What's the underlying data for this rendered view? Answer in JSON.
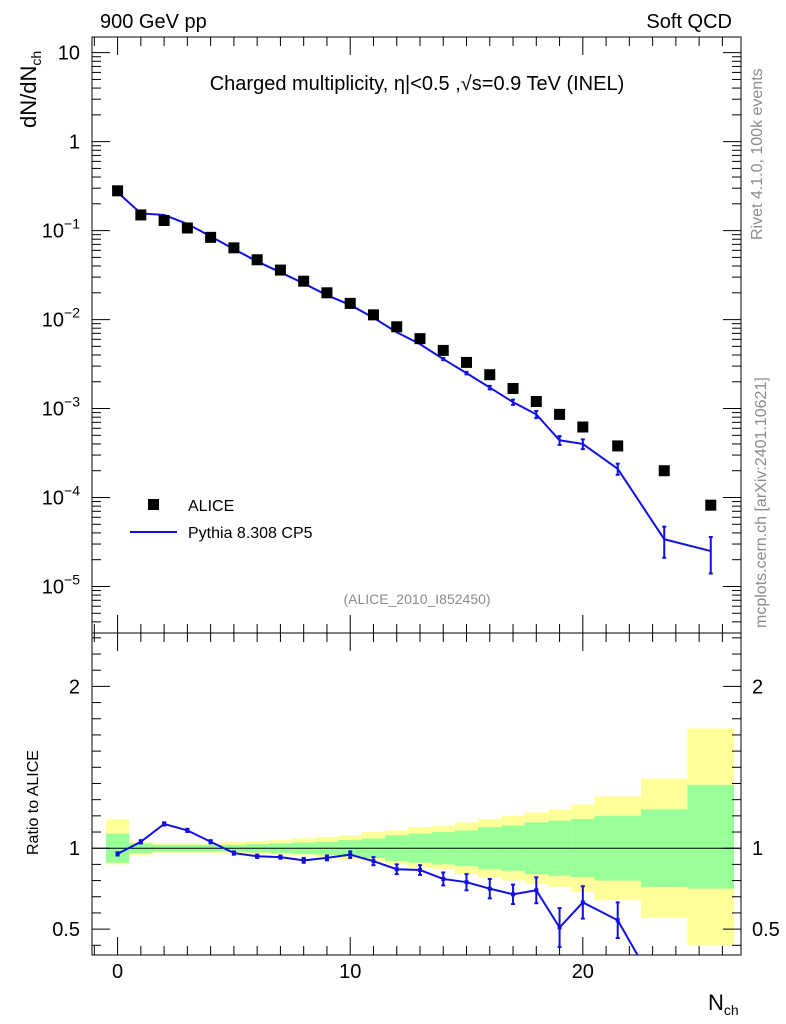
{
  "header": {
    "left": "900 GeV pp",
    "right": "Soft QCD",
    "title": "Charged multiplicity, η|<0.5 ,√s=0.9 TeV (INEL)",
    "analysis_tag": "(ALICE_2010_I852450)"
  },
  "side": {
    "rivet": "Rivet 4.1.0,  100k events",
    "mcplots": "mcplots.cern.ch [arXiv:2401.10621]"
  },
  "axes": {
    "ylabel_main": "dN/dN_ch",
    "ylabel_ratio": "Ratio to ALICE",
    "xlabel": "N_ch"
  },
  "legend": {
    "data_label": "ALICE",
    "mc_label": "Pythia 8.308 CP5"
  },
  "colors": {
    "mc": "#1010e0",
    "band_inner": "#99ff99",
    "band_outer": "#ffff99",
    "data": "#000000"
  },
  "chart_data": [
    {
      "type": "scatter",
      "name": "main",
      "yscale": "log",
      "xlim": [
        -1.1,
        26.8
      ],
      "ylim": [
        3e-06,
        15
      ],
      "x_major_ticks": [
        0,
        10,
        20
      ],
      "y_major_ticks": [
        1e-05,
        0.0001,
        0.001,
        0.01,
        0.1,
        1,
        10
      ],
      "y_tick_labels": [
        "10^-5",
        "10^-4",
        "10^-3",
        "10^-2",
        "10^-1",
        "1",
        "10"
      ],
      "series": [
        {
          "name": "ALICE",
          "style": "markers",
          "x": [
            0,
            1,
            2,
            3,
            4,
            5,
            6,
            7,
            8,
            9,
            10,
            11,
            12,
            13,
            14,
            15,
            16,
            17,
            18,
            19,
            20,
            21.5,
            23.5,
            25.5
          ],
          "y": [
            0.28,
            0.15,
            0.13,
            0.107,
            0.084,
            0.064,
            0.047,
            0.036,
            0.027,
            0.02,
            0.0152,
            0.0113,
            0.0083,
            0.0061,
            0.0045,
            0.0033,
            0.0024,
            0.00168,
            0.0012,
            0.00086,
            0.00062,
            0.00038,
            0.0002,
            8.2e-05
          ]
        },
        {
          "name": "Pythia 8.308 CP5",
          "style": "line",
          "x": [
            0,
            1,
            2,
            3,
            4,
            5,
            6,
            7,
            8,
            9,
            10,
            11,
            12,
            13,
            14,
            15,
            16,
            17,
            18,
            19,
            20,
            21.5,
            23.5,
            25.5
          ],
          "y": [
            0.27,
            0.156,
            0.15,
            0.119,
            0.086,
            0.062,
            0.045,
            0.034,
            0.0255,
            0.0188,
            0.0146,
            0.0105,
            0.0072,
            0.0053,
            0.0036,
            0.0025,
            0.00172,
            0.00118,
            0.00086,
            0.00044,
            0.0004,
            0.00021,
            3.4e-05,
            2.5e-05
          ],
          "y_err": [
            0.003,
            0.002,
            0.002,
            0.0015,
            0.0012,
            0.0009,
            0.0007,
            0.0005,
            0.0004,
            0.0003,
            0.00025,
            0.0002,
            0.00015,
            0.00012,
            0.0001,
            8e-05,
            8e-05,
            8e-05,
            8e-05,
            5e-05,
            5e-05,
            3e-05,
            1.3e-05,
            1.1e-05
          ]
        }
      ]
    },
    {
      "type": "line",
      "name": "ratio",
      "xlim": [
        -1.1,
        26.8
      ],
      "ylim": [
        0.34,
        2.33
      ],
      "y_major_ticks": [
        0.5,
        1,
        2
      ],
      "y_tick_labels": [
        "0.5",
        "1",
        "2"
      ],
      "reference_line": 1,
      "bands": {
        "edges": [
          -0.5,
          0.5,
          1.5,
          2.5,
          3.5,
          4.5,
          5.5,
          6.5,
          7.5,
          8.5,
          9.5,
          10.5,
          11.5,
          12.5,
          13.5,
          14.5,
          15.5,
          16.5,
          17.5,
          18.5,
          19.5,
          20.5,
          22.5,
          24.5,
          26.5
        ],
        "inner_lo": [
          0.91,
          0.97,
          0.98,
          0.98,
          0.98,
          0.98,
          0.975,
          0.97,
          0.965,
          0.96,
          0.95,
          0.94,
          0.92,
          0.91,
          0.9,
          0.89,
          0.87,
          0.86,
          0.84,
          0.83,
          0.82,
          0.8,
          0.76,
          0.75
        ],
        "inner_hi": [
          1.09,
          1.03,
          1.02,
          1.02,
          1.02,
          1.02,
          1.025,
          1.03,
          1.035,
          1.04,
          1.05,
          1.06,
          1.08,
          1.09,
          1.1,
          1.11,
          1.13,
          1.14,
          1.16,
          1.17,
          1.18,
          1.2,
          1.24,
          1.39
        ],
        "outer_lo": [
          0.9,
          0.96,
          0.97,
          0.97,
          0.97,
          0.97,
          0.965,
          0.96,
          0.955,
          0.94,
          0.93,
          0.92,
          0.9,
          0.88,
          0.87,
          0.84,
          0.82,
          0.8,
          0.78,
          0.76,
          0.73,
          0.68,
          0.57,
          0.4
        ],
        "outer_hi": [
          1.18,
          1.04,
          1.03,
          1.03,
          1.03,
          1.04,
          1.045,
          1.05,
          1.06,
          1.07,
          1.08,
          1.1,
          1.11,
          1.13,
          1.14,
          1.16,
          1.18,
          1.2,
          1.22,
          1.24,
          1.27,
          1.32,
          1.43,
          1.74
        ]
      },
      "series": [
        {
          "name": "Pythia 8.308 CP5 / ALICE",
          "x": [
            0,
            1,
            2,
            3,
            4,
            5,
            6,
            7,
            8,
            9,
            10,
            11,
            12,
            13,
            14,
            15,
            16,
            17,
            18,
            19,
            20,
            21.5,
            22.35
          ],
          "y": [
            0.965,
            1.04,
            1.15,
            1.11,
            1.04,
            0.97,
            0.95,
            0.945,
            0.925,
            0.94,
            0.96,
            0.92,
            0.87,
            0.865,
            0.81,
            0.79,
            0.75,
            0.715,
            0.74,
            0.51,
            0.665,
            0.555,
            0.34
          ],
          "y_err": [
            0.01,
            0.01,
            0.01,
            0.01,
            0.01,
            0.01,
            0.01,
            0.01,
            0.015,
            0.015,
            0.02,
            0.025,
            0.03,
            0.03,
            0.04,
            0.05,
            0.06,
            0.06,
            0.08,
            0.12,
            0.1,
            0.11,
            0
          ]
        }
      ]
    }
  ]
}
